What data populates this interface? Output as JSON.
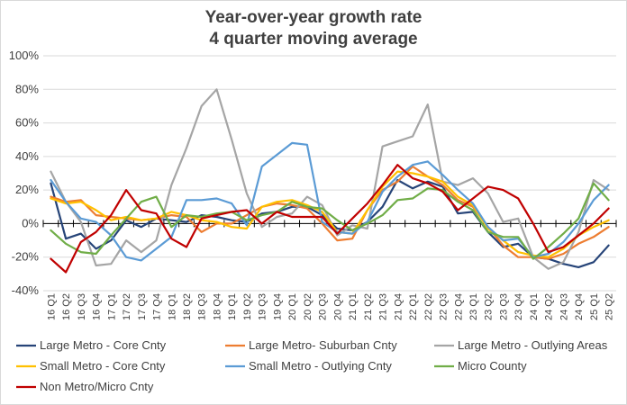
{
  "chart_data": {
    "type": "line",
    "title": "Year-over-year growth rate",
    "subtitle": "4 quarter moving average",
    "xlabel": "",
    "ylabel": "",
    "ylim": [
      -0.4,
      1.0
    ],
    "y_ticks": [
      1.0,
      0.8,
      0.6,
      0.4,
      0.2,
      0.0,
      -0.2,
      -0.4
    ],
    "y_tick_labels": [
      "100%",
      "80%",
      "60%",
      "40%",
      "20%",
      "0%",
      "-20%",
      "-40%"
    ],
    "grid": true,
    "legend_position": "bottom",
    "categories": [
      "16 Q1",
      "16 Q2",
      "16 Q3",
      "16 Q4",
      "17 Q1",
      "17 Q2",
      "17 Q3",
      "17 Q4",
      "18 Q1",
      "18 Q2",
      "18 Q3",
      "18 Q4",
      "19 Q1",
      "19 Q2",
      "19 Q3",
      "19 Q4",
      "20 Q1",
      "20 Q2",
      "20 Q3",
      "20 Q4",
      "21 Q1",
      "21 Q2",
      "21 Q3",
      "21 Q4",
      "22 Q1",
      "22 Q2",
      "22 Q3",
      "22 Q4",
      "23 Q1",
      "23 Q2",
      "23 Q3",
      "23 Q4",
      "24 Q1",
      "24 Q2",
      "24 Q3",
      "24 Q4",
      "25 Q1",
      "25 Q2"
    ],
    "series": [
      {
        "name": "Large Metro - Core Cnty",
        "color": "#264478",
        "values": [
          0.24,
          -0.09,
          -0.06,
          -0.15,
          -0.1,
          0.02,
          -0.02,
          0.03,
          0.02,
          0.01,
          0.05,
          0.04,
          0.02,
          0.01,
          0.06,
          0.07,
          0.1,
          0.1,
          0.05,
          -0.03,
          -0.04,
          0.01,
          0.1,
          0.26,
          0.21,
          0.25,
          0.22,
          0.06,
          0.07,
          -0.05,
          -0.14,
          -0.12,
          -0.2,
          -0.21,
          -0.24,
          -0.26,
          -0.23,
          -0.13
        ]
      },
      {
        "name": "Large Metro- Suburban Cnty",
        "color": "#ED7D31",
        "values": [
          0.16,
          0.13,
          0.14,
          0.05,
          0.04,
          0.03,
          0.02,
          0.03,
          0.05,
          0.04,
          -0.05,
          0.0,
          0.0,
          0.05,
          0.1,
          0.12,
          0.11,
          0.09,
          0.0,
          -0.1,
          -0.09,
          0.08,
          0.2,
          0.25,
          0.34,
          0.28,
          0.23,
          0.14,
          0.1,
          -0.02,
          -0.13,
          -0.2,
          -0.2,
          -0.21,
          -0.18,
          -0.12,
          -0.08,
          -0.02
        ]
      },
      {
        "name": "Large Metro - Outlying Areas",
        "color": "#A5A5A5",
        "values": [
          0.31,
          0.13,
          0.01,
          -0.25,
          -0.24,
          -0.1,
          -0.17,
          -0.1,
          0.23,
          0.45,
          0.7,
          0.8,
          0.5,
          0.18,
          -0.02,
          0.04,
          0.06,
          0.16,
          0.11,
          -0.07,
          -0.01,
          -0.03,
          0.46,
          0.49,
          0.52,
          0.71,
          0.25,
          0.23,
          0.27,
          0.18,
          0.01,
          0.03,
          -0.2,
          -0.27,
          -0.23,
          -0.05,
          0.26,
          0.2
        ]
      },
      {
        "name": "Small Metro - Core Cnty",
        "color": "#FFC000",
        "values": [
          0.15,
          0.12,
          0.13,
          0.08,
          0.02,
          0.04,
          0.02,
          0.03,
          0.07,
          0.05,
          0.02,
          0.01,
          -0.02,
          -0.03,
          0.1,
          0.13,
          0.14,
          0.11,
          0.07,
          -0.05,
          -0.06,
          0.08,
          0.22,
          0.31,
          0.3,
          0.28,
          0.25,
          0.16,
          0.11,
          -0.03,
          -0.1,
          -0.17,
          -0.19,
          -0.2,
          -0.15,
          -0.07,
          -0.02,
          0.02
        ]
      },
      {
        "name": "Small Metro - Outlying Cnty",
        "color": "#5B9BD5",
        "values": [
          0.26,
          0.13,
          0.03,
          0.01,
          -0.07,
          -0.2,
          -0.22,
          -0.15,
          -0.08,
          0.14,
          0.14,
          0.15,
          0.12,
          -0.01,
          0.34,
          0.41,
          0.48,
          0.47,
          0.01,
          -0.05,
          -0.06,
          0.01,
          0.19,
          0.28,
          0.35,
          0.37,
          0.29,
          0.2,
          0.12,
          -0.02,
          -0.1,
          -0.09,
          -0.2,
          -0.18,
          -0.11,
          0.0,
          0.14,
          0.23
        ]
      },
      {
        "name": "Micro County",
        "color": "#70AD47",
        "values": [
          -0.04,
          -0.12,
          -0.17,
          -0.18,
          -0.07,
          0.03,
          0.13,
          0.16,
          -0.02,
          0.05,
          0.04,
          0.06,
          0.07,
          0.02,
          0.05,
          0.07,
          0.13,
          0.1,
          0.09,
          0.02,
          -0.04,
          0.0,
          0.05,
          0.14,
          0.15,
          0.21,
          0.2,
          0.13,
          0.08,
          -0.05,
          -0.08,
          -0.08,
          -0.21,
          -0.14,
          -0.06,
          0.03,
          0.24,
          0.14
        ]
      },
      {
        "name": "Non Metro/Micro Cnty",
        "color": "#C00000",
        "values": [
          -0.21,
          -0.29,
          -0.11,
          -0.05,
          0.05,
          0.2,
          0.08,
          0.06,
          -0.09,
          -0.14,
          0.03,
          0.05,
          0.07,
          0.08,
          0.0,
          0.07,
          0.04,
          0.04,
          0.04,
          -0.06,
          0.03,
          0.12,
          0.23,
          0.35,
          0.27,
          0.24,
          0.19,
          0.08,
          0.15,
          0.22,
          0.2,
          0.15,
          0.0,
          -0.17,
          -0.14,
          -0.07,
          0.0,
          0.09
        ]
      }
    ]
  }
}
